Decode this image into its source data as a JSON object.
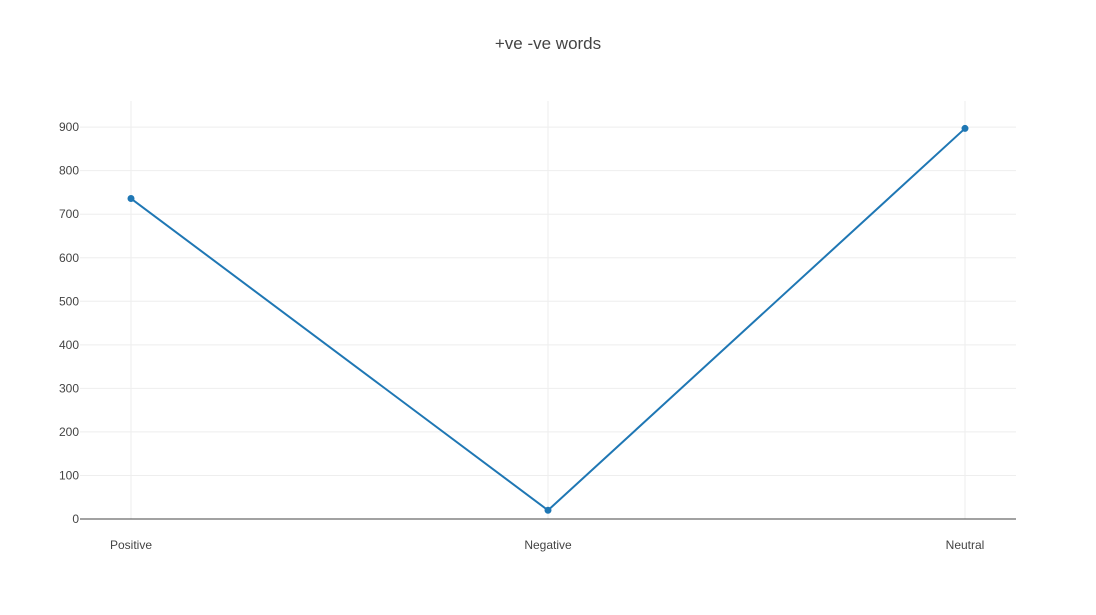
{
  "chart_data": {
    "type": "line",
    "title": "+ve -ve words",
    "xlabel": "",
    "ylabel": "",
    "categories": [
      "Positive",
      "Negative",
      "Neutral"
    ],
    "series": [
      {
        "values": [
          736,
          20,
          897
        ],
        "color": "#1f77b4"
      }
    ],
    "ylim": [
      0,
      960
    ],
    "yticks": [
      0,
      100,
      200,
      300,
      400,
      500,
      600,
      700,
      800,
      900
    ],
    "grid": true,
    "legend": "none",
    "markers": true
  }
}
